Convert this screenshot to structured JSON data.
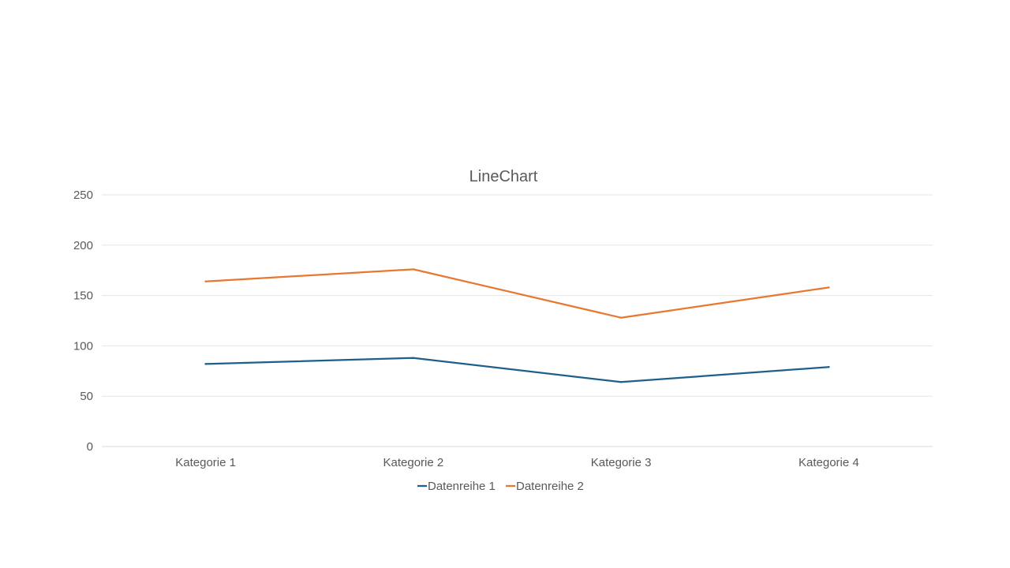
{
  "chart_data": {
    "type": "line",
    "title": "LineChart",
    "xlabel": "",
    "ylabel": "",
    "categories": [
      "Kategorie 1",
      "Kategorie 2",
      "Kategorie 3",
      "Kategorie 4"
    ],
    "ylim": [
      0,
      250
    ],
    "yticks": [
      0,
      50,
      100,
      150,
      200,
      250
    ],
    "grid": true,
    "legend_position": "bottom",
    "series": [
      {
        "name": "Datenreihe 1",
        "color": "#1f5f8b",
        "values": [
          82,
          88,
          64,
          79
        ]
      },
      {
        "name": "Datenreihe 2",
        "color": "#e87830",
        "values": [
          164,
          176,
          128,
          158
        ]
      }
    ]
  }
}
